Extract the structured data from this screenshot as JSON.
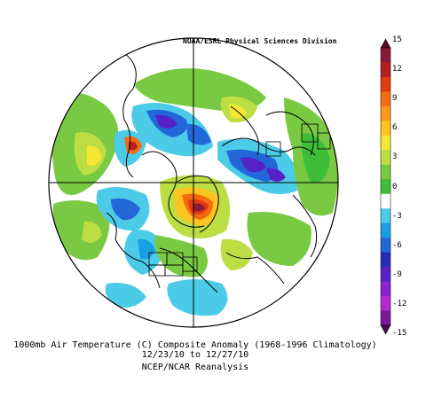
{
  "credit": "NOAA/ESRL Physical Sciences Division",
  "caption": {
    "line1": "1000mb Air Temperature (C) Composite Anomaly (1968-1996 Climatology)",
    "line2": "12/23/10  to 12/27/10",
    "line3": "NCEP/NCAR Reanalysis"
  },
  "colorbar": {
    "labels": [
      "15",
      "12",
      "9",
      "6",
      "3",
      "0",
      "-3",
      "-6",
      "-9",
      "-12",
      "-15"
    ],
    "colors": [
      "#5a0a2a",
      "#8a1a3a",
      "#b42020",
      "#e33a12",
      "#f36a10",
      "#fa9a18",
      "#fbc420",
      "#f6e832",
      "#bcdd44",
      "#7ac943",
      "#3fbd3a",
      "#ffffff",
      "#4ccbe8",
      "#1aa0e2",
      "#2266d8",
      "#2a2ab8",
      "#5522c8",
      "#8a22d0",
      "#b42ad0",
      "#7a1a9a",
      "#4a0a5a"
    ]
  }
}
